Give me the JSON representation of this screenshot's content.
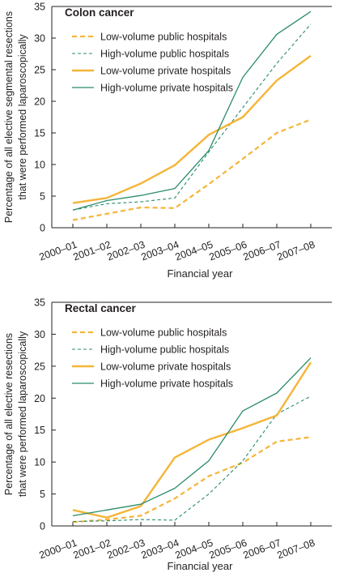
{
  "chart_data": [
    {
      "type": "line",
      "title": "Colon cancer",
      "xlabel": "Financial year",
      "ylabel": [
        "Percentage of all elective segmental resections",
        "that were performed laparoscopically"
      ],
      "ylim": [
        0,
        35
      ],
      "yticks": [
        0,
        5,
        10,
        15,
        20,
        25,
        30,
        35
      ],
      "categories": [
        "2000–01",
        "2001–02",
        "2002–03",
        "2003–04",
        "2004–05",
        "2005–06",
        "2006–07",
        "2007–08"
      ],
      "legend_position": "top-left",
      "grid": false,
      "series": [
        {
          "name": "Low-volume public hospitals",
          "color": "#f5b537",
          "style": "dashed-thick",
          "values": [
            1.2,
            2.2,
            3.2,
            3.1,
            6.9,
            10.9,
            15.0,
            17.1
          ]
        },
        {
          "name": "High-volume public hospitals",
          "color": "#2a8c6a",
          "style": "dashed-thin",
          "values": [
            2.8,
            3.8,
            4.1,
            4.7,
            12.0,
            19.0,
            26.0,
            32.2
          ]
        },
        {
          "name": "Low-volume private hospitals",
          "color": "#f5b537",
          "style": "solid-thick",
          "values": [
            3.9,
            4.7,
            7.0,
            9.9,
            14.7,
            17.5,
            23.3,
            27.2
          ]
        },
        {
          "name": "High-volume private hospitals",
          "color": "#2a8c6a",
          "style": "solid-thin",
          "values": [
            2.8,
            4.3,
            5.1,
            6.2,
            12.2,
            23.8,
            30.6,
            34.2
          ]
        }
      ]
    },
    {
      "type": "line",
      "title": "Rectal cancer",
      "xlabel": "Financial year",
      "ylabel": [
        "Percentage of all elective resections",
        "that were performed laparoscopically"
      ],
      "ylim": [
        0,
        35
      ],
      "yticks": [
        0,
        5,
        10,
        15,
        20,
        25,
        30,
        35
      ],
      "categories": [
        "2000–01",
        "2001–02",
        "2002–03",
        "2003–04",
        "2004–05",
        "2005–06",
        "2006–07",
        "2007–08"
      ],
      "legend_position": "top-left",
      "grid": false,
      "series": [
        {
          "name": "Low-volume public hospitals",
          "color": "#f5b537",
          "style": "dashed-thick",
          "values": [
            0.6,
            1.0,
            1.6,
            4.3,
            7.8,
            9.9,
            13.2,
            13.9
          ]
        },
        {
          "name": "High-volume public hospitals",
          "color": "#2a8c6a",
          "style": "dashed-thin",
          "values": [
            0.7,
            0.8,
            1.0,
            0.9,
            5.0,
            10.2,
            17.5,
            20.3
          ]
        },
        {
          "name": "Low-volume private hospitals",
          "color": "#f5b537",
          "style": "solid-thick",
          "values": [
            2.5,
            1.3,
            3.1,
            10.7,
            13.5,
            15.3,
            17.3,
            25.6
          ]
        },
        {
          "name": "High-volume private hospitals",
          "color": "#2a8c6a",
          "style": "solid-thin",
          "values": [
            1.6,
            2.5,
            3.4,
            5.9,
            10.2,
            18.0,
            20.8,
            26.3
          ]
        }
      ]
    }
  ]
}
